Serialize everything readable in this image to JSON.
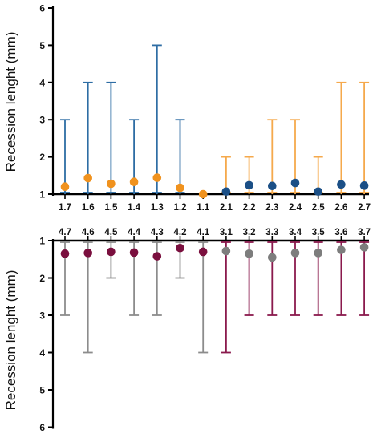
{
  "chart_data": [
    {
      "type": "scatter",
      "panel": "upper",
      "ylabel": "Recession lenght (mm)",
      "ylim": [
        1,
        6
      ],
      "yticks": [
        "1",
        "2",
        "3",
        "4",
        "5",
        "6"
      ],
      "categories": [
        "1.7",
        "1.6",
        "1.5",
        "1.4",
        "1.3",
        "1.2",
        "1.1",
        "2.1",
        "2.2",
        "2.3",
        "2.4",
        "2.5",
        "2.6",
        "2.7"
      ],
      "values": [
        1.2,
        1.43,
        1.28,
        1.33,
        1.44,
        1.17,
        1.0,
        1.07,
        1.24,
        1.22,
        1.3,
        1.07,
        1.26,
        1.23
      ],
      "error_low": [
        1,
        1,
        1,
        1,
        1,
        1,
        1,
        1,
        1,
        1,
        1,
        1,
        1,
        1
      ],
      "error_high": [
        3,
        4,
        4,
        3,
        5,
        3,
        1,
        2,
        2,
        3,
        3,
        2,
        4,
        4
      ],
      "point_colors": [
        "#f0921e",
        "#f0921e",
        "#f0921e",
        "#f0921e",
        "#f0921e",
        "#f0921e",
        "#f0921e",
        "#1b4f86",
        "#1b4f86",
        "#1b4f86",
        "#1b4f86",
        "#1b4f86",
        "#1b4f86",
        "#1b4f86"
      ],
      "bar_colors": [
        "#2e6da4",
        "#2e6da4",
        "#2e6da4",
        "#2e6da4",
        "#2e6da4",
        "#2e6da4",
        "#2e6da4",
        "#f5a94c",
        "#f5a94c",
        "#f5a94c",
        "#f5a94c",
        "#f5a94c",
        "#f5a94c",
        "#f5a94c"
      ]
    },
    {
      "type": "scatter",
      "panel": "lower",
      "ylabel": "Recession lenght (mm)",
      "ylim": [
        1,
        6
      ],
      "y_inverted": true,
      "yticks": [
        "1",
        "2",
        "3",
        "4",
        "5",
        "6"
      ],
      "categories": [
        "4.7",
        "4.6",
        "4.5",
        "4.4",
        "4.3",
        "4.2",
        "4.1",
        "3.1",
        "3.2",
        "3.3",
        "3.4",
        "3.5",
        "3.6",
        "3.7"
      ],
      "values": [
        1.35,
        1.33,
        1.3,
        1.32,
        1.42,
        1.2,
        1.3,
        1.28,
        1.35,
        1.45,
        1.33,
        1.33,
        1.25,
        1.18
      ],
      "error_low": [
        1,
        1,
        1,
        1,
        1,
        1,
        1,
        1,
        1,
        1,
        1,
        1,
        1,
        1
      ],
      "error_high": [
        3,
        4,
        2,
        3,
        3,
        2,
        4,
        4,
        3,
        3,
        3,
        3,
        3,
        3
      ],
      "point_colors": [
        "#7a0f3e",
        "#7a0f3e",
        "#7a0f3e",
        "#7a0f3e",
        "#7a0f3e",
        "#7a0f3e",
        "#7a0f3e",
        "#7d7d7d",
        "#7d7d7d",
        "#7d7d7d",
        "#7d7d7d",
        "#7d7d7d",
        "#7d7d7d",
        "#7d7d7d"
      ],
      "bar_colors": [
        "#8c8c8c",
        "#8c8c8c",
        "#8c8c8c",
        "#8c8c8c",
        "#8c8c8c",
        "#8c8c8c",
        "#8c8c8c",
        "#8a1a4d",
        "#8a1a4d",
        "#8a1a4d",
        "#8a1a4d",
        "#8a1a4d",
        "#8a1a4d",
        "#8a1a4d"
      ]
    }
  ]
}
